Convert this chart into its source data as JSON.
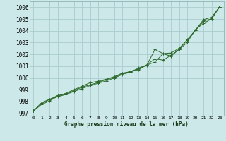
{
  "bg_color": "#cce8e8",
  "grid_color": "#aacccc",
  "line_color": "#2d6a2d",
  "marker_color": "#2d6a2d",
  "xlabel": "Graphe pression niveau de la mer (hPa)",
  "ylim": [
    996.8,
    1006.5
  ],
  "xlim": [
    -0.5,
    23.5
  ],
  "yticks": [
    997,
    998,
    999,
    1000,
    1001,
    1002,
    1003,
    1004,
    1005,
    1006
  ],
  "xticks": [
    0,
    1,
    2,
    3,
    4,
    5,
    6,
    7,
    8,
    9,
    10,
    11,
    12,
    13,
    14,
    15,
    16,
    17,
    18,
    19,
    20,
    21,
    22,
    23
  ],
  "series": [
    [
      997.2,
      997.9,
      998.2,
      998.4,
      998.6,
      998.85,
      999.1,
      999.35,
      999.55,
      999.75,
      1000.0,
      1000.3,
      1000.5,
      1000.85,
      1001.1,
      1001.35,
      1002.05,
      1001.85,
      1002.45,
      1003.25,
      1004.05,
      1004.95,
      1005.15,
      1006.05
    ],
    [
      997.2,
      997.75,
      998.05,
      998.45,
      998.7,
      999.0,
      999.3,
      999.6,
      999.72,
      999.9,
      1000.12,
      1000.42,
      1000.52,
      1000.72,
      1001.12,
      1001.62,
      1001.52,
      1001.92,
      1002.42,
      1003.02,
      1004.12,
      1004.62,
      1005.02,
      1006.05
    ],
    [
      997.2,
      997.82,
      998.18,
      998.52,
      998.62,
      998.92,
      999.22,
      999.42,
      999.62,
      999.87,
      1000.07,
      1000.37,
      1000.57,
      1000.77,
      1001.07,
      1002.42,
      1002.07,
      1002.12,
      1002.52,
      1003.22,
      1004.02,
      1004.82,
      1005.02,
      1006.05
    ]
  ]
}
